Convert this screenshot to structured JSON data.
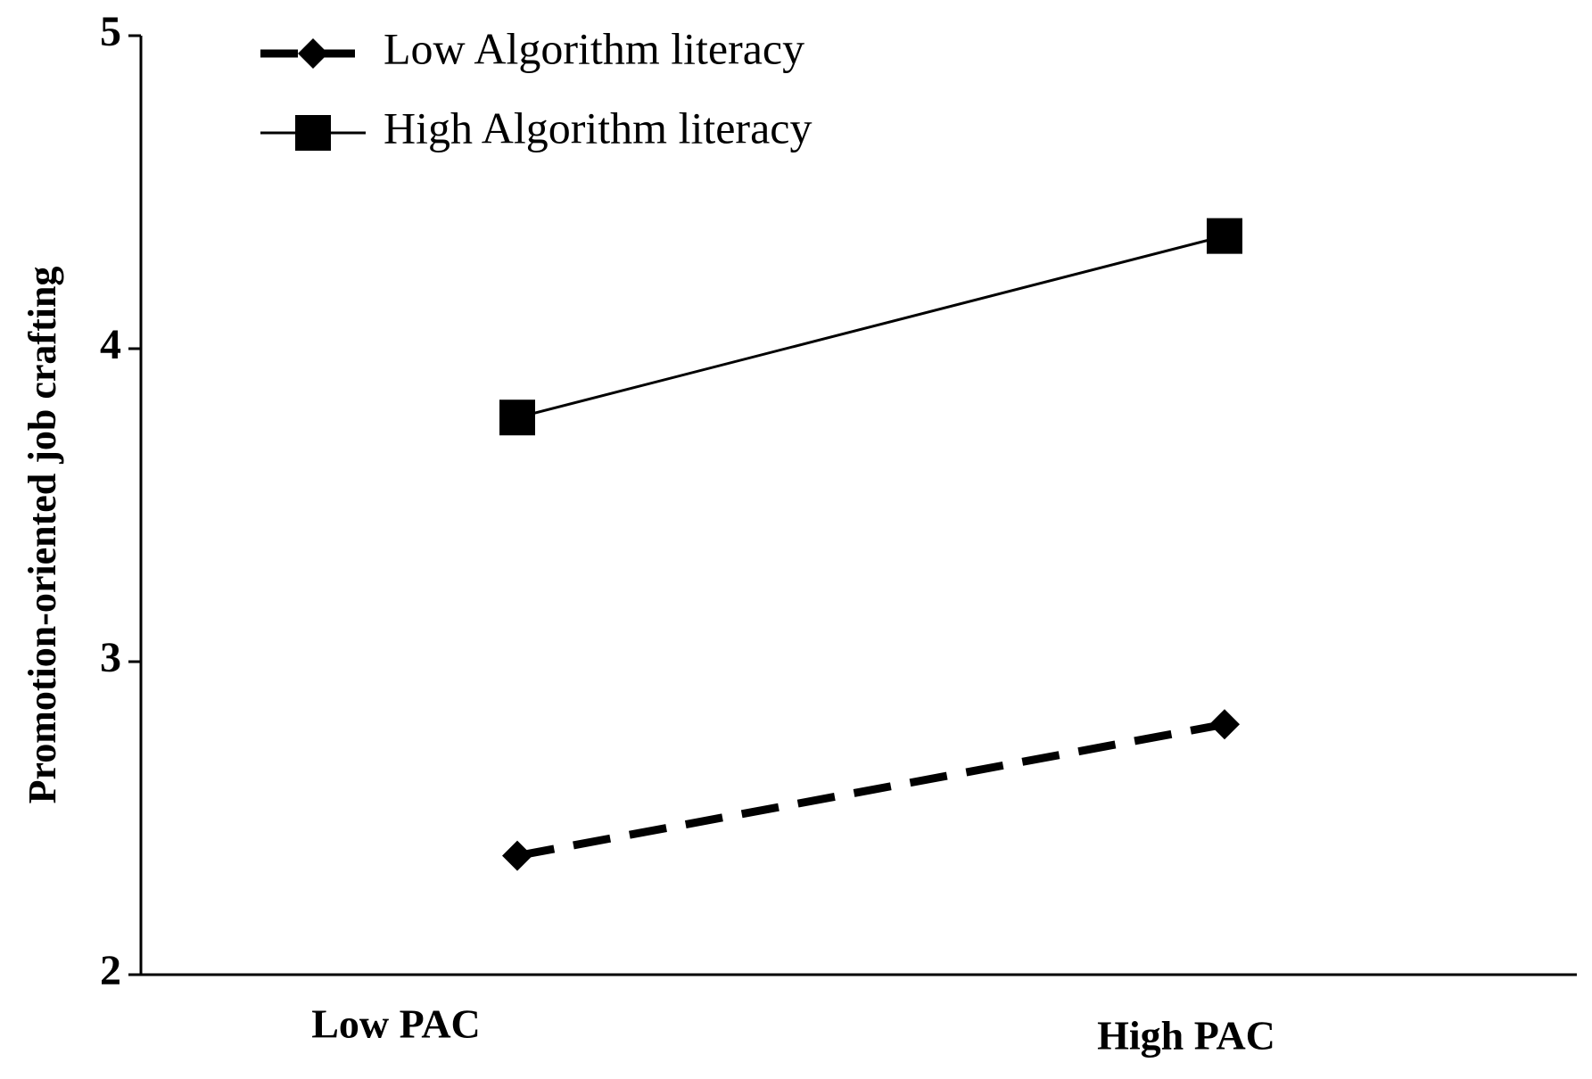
{
  "chart_data": {
    "type": "line",
    "ylabel": "Promotion-oriented job crafting",
    "categories": [
      "Low PAC",
      "High PAC"
    ],
    "series": [
      {
        "name": "Low Algorithm literacy",
        "color": "#000000",
        "line_style": "dashed",
        "marker": "diamond",
        "values": [
          2.38,
          2.8
        ]
      },
      {
        "name": "High Algorithm literacy",
        "color": "#000000",
        "line_style": "solid",
        "marker": "square",
        "values": [
          3.78,
          4.36
        ]
      }
    ],
    "ylim": [
      2,
      5
    ],
    "yticks": [
      2,
      3,
      4,
      5
    ],
    "grid": false,
    "legend": "upper left"
  }
}
